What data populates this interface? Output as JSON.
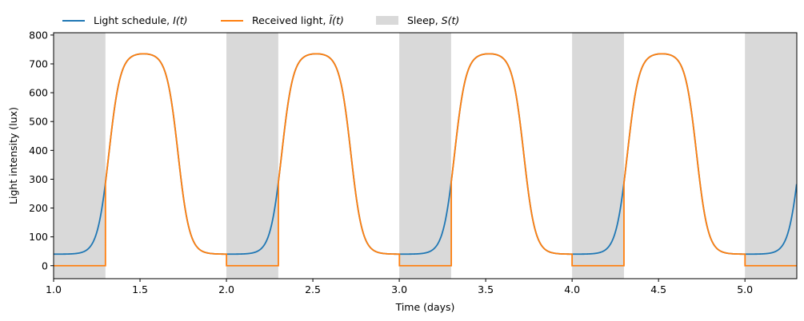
{
  "chart_data": {
    "type": "line",
    "title": "",
    "xlabel": "Time (days)",
    "ylabel": "Light intensity (lux)",
    "xlim": [
      1.0,
      5.3
    ],
    "ylim": [
      -45,
      808
    ],
    "xticks": [
      1.0,
      1.5,
      2.0,
      2.5,
      3.0,
      3.5,
      4.0,
      4.5,
      5.0
    ],
    "xtick_labels": [
      "1.0",
      "1.5",
      "2.0",
      "2.5",
      "3.0",
      "3.5",
      "4.0",
      "4.5",
      "5.0"
    ],
    "yticks": [
      0,
      100,
      200,
      300,
      400,
      500,
      600,
      700,
      800
    ],
    "ytick_labels": [
      "0",
      "100",
      "200",
      "300",
      "400",
      "500",
      "600",
      "700",
      "800"
    ],
    "grid": false,
    "legend": {
      "placement": "top-left-outside",
      "entries": [
        {
          "prefix": "Light schedule, ",
          "symbol": "I(t)",
          "kind": "line",
          "color": "#1f77b4"
        },
        {
          "prefix": "Received light, ",
          "symbol": "Ĩ(t)",
          "kind": "line",
          "color": "#ff7f0e"
        },
        {
          "prefix": "Sleep, ",
          "symbol": "S(t)",
          "kind": "patch",
          "color": "#d9d9d9"
        }
      ]
    },
    "schedule_model": {
      "period_days": 1.0,
      "baseline_lux": 40,
      "peak_lux": 735,
      "peak_phase": 0.52,
      "sleep_received_lux": 0
    },
    "sleep_intervals": [
      [
        1.0,
        1.3
      ],
      [
        2.0,
        2.3
      ],
      [
        3.0,
        3.3
      ],
      [
        4.0,
        4.3
      ],
      [
        5.0,
        5.3
      ]
    ],
    "series": [
      {
        "name": "Light schedule, I(t)",
        "color": "#1f77b4",
        "x": [
          1.0,
          1.1,
          1.2,
          1.25,
          1.3,
          1.35,
          1.4,
          1.45,
          1.5,
          1.52,
          1.55,
          1.6,
          1.65,
          1.7,
          1.75,
          1.8,
          1.9,
          2.0
        ],
        "y": [
          40,
          41,
          72,
          130,
          250,
          420,
          620,
          710,
          732,
          735,
          732,
          700,
          590,
          410,
          240,
          120,
          45,
          40
        ]
      },
      {
        "name": "Received light, Ĩ(t)",
        "color": "#ff7f0e",
        "x": [
          1.0,
          1.3,
          1.3,
          1.35,
          1.4,
          1.45,
          1.5,
          1.52,
          1.55,
          1.6,
          1.65,
          1.7,
          1.75,
          1.8,
          1.9,
          2.0
        ],
        "y": [
          0,
          0,
          250,
          420,
          620,
          710,
          732,
          735,
          732,
          700,
          590,
          410,
          240,
          120,
          45,
          40
        ]
      }
    ]
  }
}
